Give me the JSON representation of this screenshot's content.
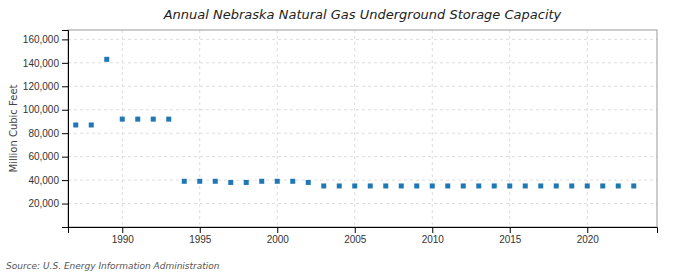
{
  "chart_data": {
    "type": "scatter",
    "title": "Annual Nebraska Natural Gas Underground Storage Capacity",
    "ylabel": "Million Cubic Feet",
    "annotations": [
      "Source: U.S. Energy Information Administration"
    ],
    "x": [
      1987,
      1988,
      1989,
      1990,
      1991,
      1992,
      1993,
      1994,
      1995,
      1996,
      1997,
      1998,
      1999,
      2000,
      2001,
      2002,
      2003,
      2004,
      2005,
      2006,
      2007,
      2008,
      2009,
      2010,
      2011,
      2012,
      2013,
      2014,
      2015,
      2016,
      2017,
      2018,
      2019,
      2020,
      2021,
      2022,
      2023
    ],
    "values": [
      87000,
      87000,
      143000,
      92000,
      92000,
      92000,
      92000,
      39000,
      39000,
      39000,
      38000,
      38000,
      39000,
      39000,
      39000,
      38000,
      35000,
      35000,
      35000,
      35000,
      35000,
      35000,
      35000,
      35000,
      35000,
      35000,
      35000,
      35000,
      35000,
      35000,
      35000,
      35000,
      35000,
      35000,
      35000,
      35000,
      35000
    ],
    "marker": "square",
    "grid": true,
    "xlim": [
      1986.5,
      2024.5
    ],
    "xticks": [
      1990,
      1995,
      2000,
      2005,
      2010,
      2015,
      2020
    ],
    "ylim": [
      0,
      168000
    ],
    "yticks": [
      {
        "value": 20000,
        "label": "20,000"
      },
      {
        "value": 40000,
        "label": "40,000"
      },
      {
        "value": 60000,
        "label": "60,000"
      },
      {
        "value": 80000,
        "label": "80,000"
      },
      {
        "value": 100000,
        "label": "100,000"
      },
      {
        "value": 120000,
        "label": "120,000"
      },
      {
        "value": 140000,
        "label": "140,000"
      },
      {
        "value": 160000,
        "label": "160,000"
      }
    ]
  }
}
